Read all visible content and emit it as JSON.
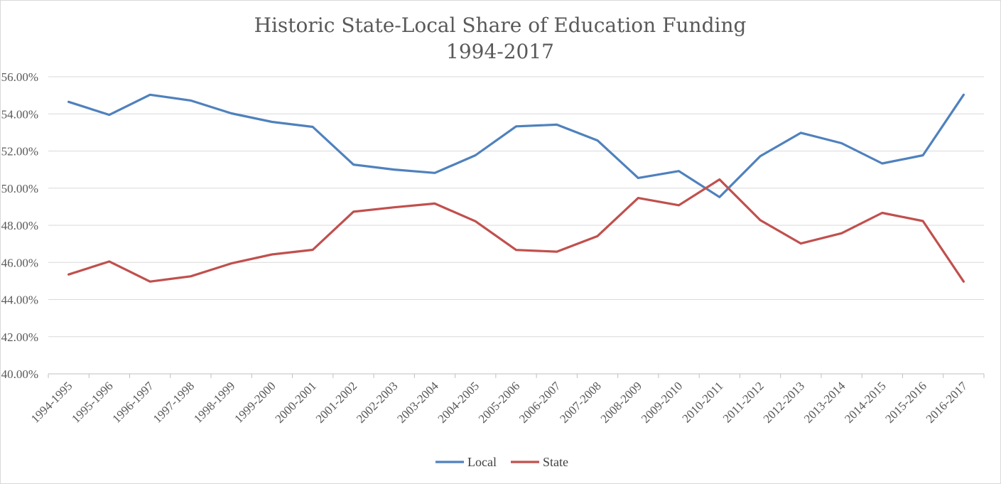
{
  "chart_data": {
    "type": "line",
    "title": "Historic State-Local Share of Education Funding",
    "subtitle": "1994-2017",
    "xlabel": "",
    "ylabel": "",
    "ylim": [
      40,
      56
    ],
    "ytick_step": 2,
    "ytick_labels": [
      "40.00%",
      "42.00%",
      "44.00%",
      "46.00%",
      "48.00%",
      "50.00%",
      "52.00%",
      "54.00%",
      "56.00%"
    ],
    "grid": true,
    "legend_position": "bottom-center",
    "categories": [
      "1994-1995",
      "1995-1996",
      "1996-1997",
      "1997-1998",
      "1998-1999",
      "1999-2000",
      "2000-2001",
      "2001-2002",
      "2002-2003",
      "2003-2004",
      "2004-2005",
      "2005-2006",
      "2006-2007",
      "2007-2008",
      "2008-2009",
      "2009-2010",
      "2010-2011",
      "2011-2012",
      "2012-2013",
      "2013-2014",
      "2014-2015",
      "2015-2016",
      "2016-2017"
    ],
    "series": [
      {
        "name": "Local",
        "color": "#4f81bd",
        "values": [
          54.65,
          53.95,
          55.03,
          54.72,
          54.03,
          53.57,
          53.3,
          51.27,
          51.0,
          50.82,
          51.77,
          53.33,
          53.42,
          52.57,
          50.55,
          50.92,
          49.52,
          51.72,
          52.98,
          52.42,
          51.33,
          51.77,
          55.03
        ]
      },
      {
        "name": "State",
        "color": "#c0504d",
        "values": [
          45.35,
          46.05,
          44.97,
          45.25,
          45.95,
          46.43,
          46.68,
          48.73,
          48.97,
          49.17,
          48.22,
          46.67,
          46.58,
          47.42,
          49.47,
          49.08,
          50.47,
          48.28,
          47.02,
          47.57,
          48.67,
          48.23,
          44.97
        ]
      }
    ]
  }
}
